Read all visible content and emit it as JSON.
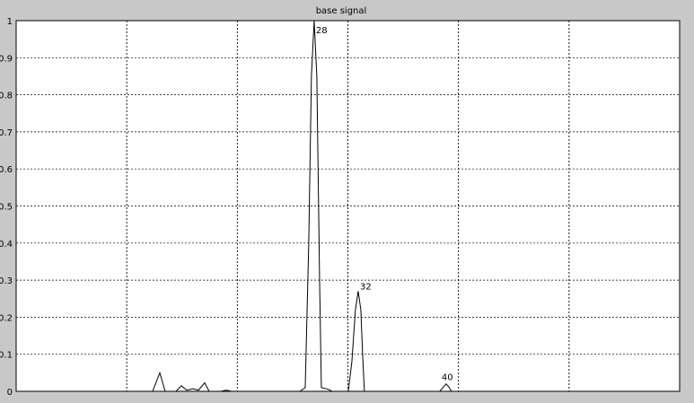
{
  "chart_data": {
    "type": "line",
    "title": "base signal",
    "xlabel": "",
    "ylabel": "",
    "ylim": [
      0,
      1
    ],
    "xlim": [
      0,
      6
    ],
    "yticks": [
      "0",
      "0.1",
      "0.2",
      "0.3",
      "0.4",
      "0.5",
      "0.6",
      "0.7",
      "0.8",
      "0.9",
      "1"
    ],
    "xgrid": [
      1,
      2,
      3,
      4,
      5
    ],
    "grid": true,
    "background": "#c8c8c8",
    "axes_color": "#ffffff",
    "line_color": "#000000",
    "series": [
      {
        "x": [
          0,
          1.234,
          1.299,
          1.347,
          1.445,
          1.494,
          1.542,
          1.599,
          1.648,
          1.705,
          1.745,
          1.851,
          1.899,
          1.948,
          2.565,
          2.614,
          2.646,
          2.67,
          2.695,
          2.719,
          2.744,
          2.76,
          2.792,
          2.825,
          2.857,
          3.003,
          3.036,
          3.068,
          3.093,
          3.117,
          3.133,
          3.149,
          3.831,
          3.864,
          3.888,
          3.912,
          3.937,
          6.0
        ],
        "y": [
          0,
          0,
          0.05,
          0,
          0,
          0.015,
          0.003,
          0.007,
          0.003,
          0.023,
          0,
          0,
          0.003,
          0,
          0,
          0.01,
          0.4,
          0.85,
          1.0,
          0.85,
          0.3,
          0.01,
          0.008,
          0.005,
          0,
          0,
          0.08,
          0.22,
          0.27,
          0.22,
          0.1,
          0,
          0,
          0.012,
          0.02,
          0.012,
          0,
          0
        ]
      }
    ],
    "annotations": [
      {
        "text": "28",
        "x": 2.695,
        "y": 1.0
      },
      {
        "text": "32",
        "x": 3.093,
        "y": 0.27
      },
      {
        "text": "40",
        "x": 3.888,
        "y": 0.02
      }
    ]
  }
}
